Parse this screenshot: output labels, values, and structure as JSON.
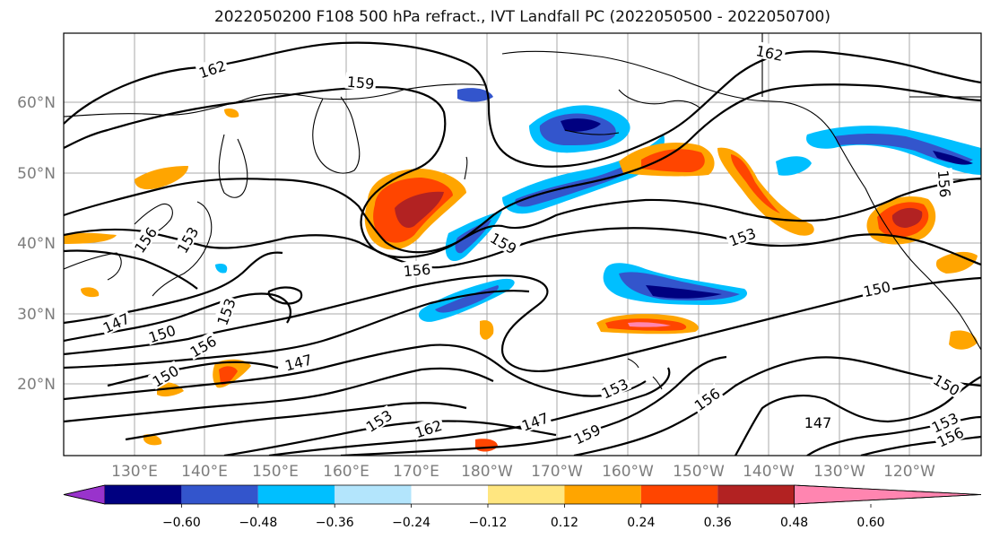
{
  "title": "2022050200 F108 500 hPa refract., IVT Landfall PC (2022050500 - 2022050700)",
  "map": {
    "lat_labels": [
      "60°N",
      "50°N",
      "40°N",
      "30°N",
      "20°N"
    ],
    "lon_labels": [
      "130°E",
      "140°E",
      "150°E",
      "160°E",
      "170°E",
      "180°W",
      "170°W",
      "160°W",
      "150°W",
      "140°W",
      "130°W",
      "120°W"
    ],
    "contour_labels": [
      "162",
      "159",
      "162",
      "156",
      "153",
      "159",
      "156",
      "153",
      "153",
      "150",
      "156",
      "147",
      "150",
      "147",
      "153",
      "150",
      "153",
      "162",
      "147",
      "159",
      "156",
      "147",
      "150",
      "153",
      "156",
      "156"
    ]
  },
  "colorbar": {
    "ticks": [
      "−0.60",
      "−0.48",
      "−0.36",
      "−0.24",
      "−0.12",
      "0.12",
      "0.24",
      "0.36",
      "0.48",
      "0.60"
    ],
    "colors": [
      "#9933cc",
      "#000080",
      "#3355cc",
      "#00bfff",
      "#b3e5fc",
      "#ffffff",
      "#ffe680",
      "#ffa500",
      "#ff4500",
      "#b22222",
      "#ff85b0"
    ]
  }
}
